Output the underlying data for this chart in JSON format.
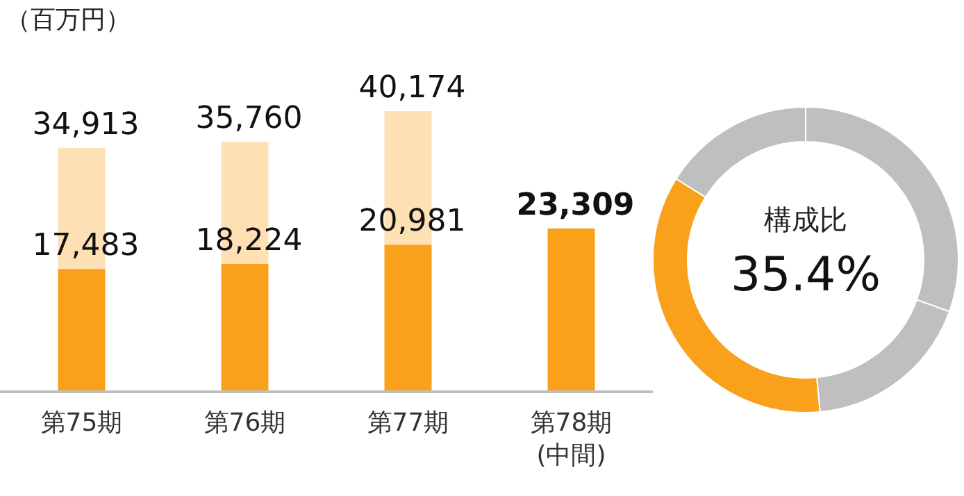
{
  "chart_data": [
    {
      "type": "bar",
      "ylabel": "（百万円）",
      "categories": [
        "第75期",
        "第76期",
        "第77期",
        "第78期\n(中間)"
      ],
      "stacked": true,
      "series": [
        {
          "color": "#f9a11b",
          "values": [
            17483,
            18224,
            20981,
            23309
          ],
          "value_labels": [
            "17,483",
            "18,224",
            "20,981",
            "23,309"
          ]
        },
        {
          "color": "#fde0b4",
          "values": [
            17430,
            17536,
            19193,
            null
          ]
        }
      ],
      "totals": [
        "34,913",
        "35,760",
        "40,174",
        null
      ]
    },
    {
      "type": "donut",
      "title": "構成比",
      "categories": [
        null,
        null,
        null,
        null
      ],
      "values": [
        30.5,
        18.0,
        35.4,
        16.1
      ],
      "colors": [
        "#bfbfbf",
        "#bfbfbf",
        "#f9a11b",
        "#bfbfbf"
      ],
      "value_labels": [
        null,
        null,
        "35.4%",
        null
      ]
    }
  ]
}
